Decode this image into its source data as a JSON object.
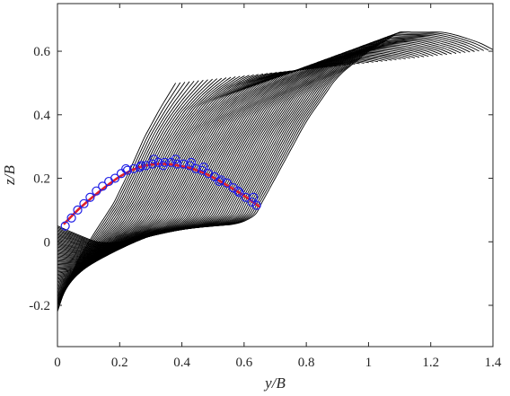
{
  "chart_data": {
    "type": "line",
    "title": "",
    "xlabel": "y/B",
    "ylabel": "z/B",
    "xlim": [
      0,
      1.4
    ],
    "ylim": [
      -0.33,
      0.75
    ],
    "grid": false,
    "legend": "none",
    "x_ticks": [
      0,
      0.2,
      0.4,
      0.6,
      0.8,
      1,
      1.2,
      1.4
    ],
    "x_tick_labels": [
      "0",
      "0.2",
      "0.4",
      "0.6",
      "0.8",
      "1",
      "1.2",
      "1.4"
    ],
    "y_ticks": [
      -0.2,
      0,
      0.2,
      0.4,
      0.6
    ],
    "y_tick_labels": [
      "-0.2",
      "0",
      "0.2",
      "0.4",
      "0.6"
    ],
    "colors": {
      "family": "#000000",
      "markers": "#1f1fe6",
      "fit": "#e0202a",
      "axes": "#262626"
    },
    "series": [
      {
        "style": "line-family",
        "count": 70,
        "description_points": {
          "first_curve": [
            [
              0,
              -0.22
            ],
            [
              0.03,
              -0.13
            ],
            [
              0.07,
              -0.05
            ],
            [
              0.12,
              0.03
            ],
            [
              0.18,
              0.12
            ],
            [
              0.23,
              0.22
            ],
            [
              0.28,
              0.33
            ],
            [
              0.33,
              0.42
            ],
            [
              0.38,
              0.5
            ]
          ],
          "last_curve": [
            [
              0,
              0.05
            ],
            [
              0.07,
              0.02
            ],
            [
              0.14,
              -0.005
            ],
            [
              0.25,
              0.005
            ],
            [
              0.36,
              0.04
            ],
            [
              0.47,
              0.05
            ],
            [
              0.57,
              0.055
            ],
            [
              0.63,
              0.075
            ],
            [
              0.7,
              0.2
            ],
            [
              0.8,
              0.38
            ],
            [
              0.9,
              0.52
            ],
            [
              1.0,
              0.6
            ],
            [
              1.1,
              0.66
            ],
            [
              1.25,
              0.66
            ],
            [
              1.35,
              0.63
            ],
            [
              1.4,
              0.605
            ]
          ]
        }
      },
      {
        "style": "markers-open-circle",
        "points": [
          [
            0.025,
            0.05
          ],
          [
            0.045,
            0.075
          ],
          [
            0.065,
            0.1
          ],
          [
            0.085,
            0.12
          ],
          [
            0.105,
            0.14
          ],
          [
            0.125,
            0.16
          ],
          [
            0.145,
            0.175
          ],
          [
            0.165,
            0.19
          ],
          [
            0.185,
            0.2
          ],
          [
            0.205,
            0.215
          ],
          [
            0.225,
            0.225
          ],
          [
            0.245,
            0.23
          ],
          [
            0.265,
            0.235
          ],
          [
            0.285,
            0.24
          ],
          [
            0.305,
            0.245
          ],
          [
            0.325,
            0.25
          ],
          [
            0.345,
            0.25
          ],
          [
            0.365,
            0.25
          ],
          [
            0.385,
            0.245
          ],
          [
            0.405,
            0.245
          ],
          [
            0.425,
            0.24
          ],
          [
            0.445,
            0.23
          ],
          [
            0.465,
            0.225
          ],
          [
            0.485,
            0.215
          ],
          [
            0.505,
            0.205
          ],
          [
            0.525,
            0.195
          ],
          [
            0.545,
            0.185
          ],
          [
            0.565,
            0.17
          ],
          [
            0.585,
            0.155
          ],
          [
            0.605,
            0.14
          ],
          [
            0.625,
            0.125
          ],
          [
            0.64,
            0.115
          ],
          [
            0.22,
            0.23
          ],
          [
            0.27,
            0.24
          ],
          [
            0.31,
            0.26
          ],
          [
            0.34,
            0.24
          ],
          [
            0.38,
            0.26
          ],
          [
            0.43,
            0.25
          ],
          [
            0.47,
            0.235
          ],
          [
            0.52,
            0.19
          ],
          [
            0.58,
            0.16
          ],
          [
            0.63,
            0.14
          ]
        ]
      },
      {
        "style": "line-fit",
        "x": [
          0.02,
          0.06,
          0.1,
          0.15,
          0.2,
          0.25,
          0.3,
          0.35,
          0.4,
          0.45,
          0.5,
          0.55,
          0.6,
          0.65
        ],
        "values": [
          0.055,
          0.095,
          0.13,
          0.17,
          0.205,
          0.23,
          0.243,
          0.245,
          0.238,
          0.225,
          0.203,
          0.175,
          0.145,
          0.11
        ]
      }
    ]
  }
}
